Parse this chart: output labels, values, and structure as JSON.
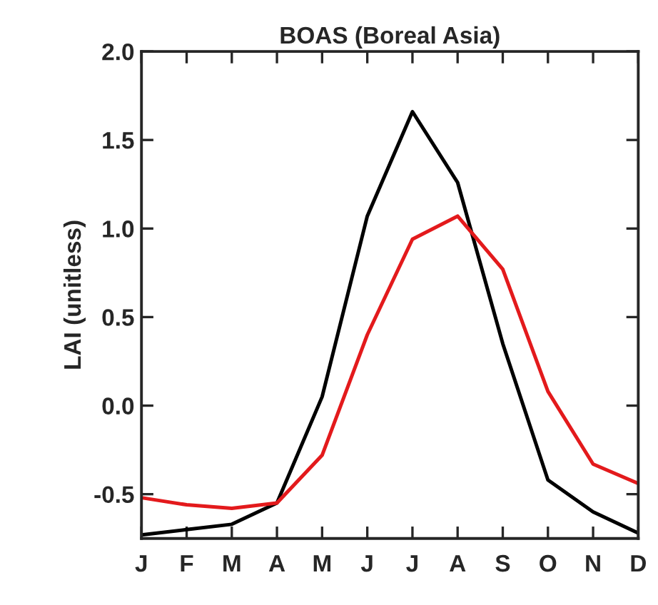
{
  "chart_data": {
    "type": "line",
    "title": "BOAS (Boreal Asia)",
    "ylabel": "LAI (unitless)",
    "categories": [
      "J",
      "F",
      "M",
      "A",
      "M",
      "J",
      "J",
      "A",
      "S",
      "O",
      "N",
      "D"
    ],
    "series": [
      {
        "color": "#000000",
        "values": [
          -0.73,
          -0.7,
          -0.67,
          -0.55,
          0.05,
          1.07,
          1.66,
          1.26,
          0.35,
          -0.42,
          -0.6,
          -0.72
        ]
      },
      {
        "color": "#e31a1c",
        "values": [
          -0.52,
          -0.56,
          -0.58,
          -0.55,
          -0.28,
          0.4,
          0.94,
          1.07,
          0.77,
          0.08,
          -0.33,
          -0.44
        ]
      }
    ],
    "ylim": [
      -0.75,
      2.0
    ],
    "yticks": [
      {
        "value": -0.5,
        "label": "-0.5"
      },
      {
        "value": 0,
        "label": "0.0"
      },
      {
        "value": 0.5,
        "label": "0.5"
      },
      {
        "value": 1.0,
        "label": "1.0"
      },
      {
        "value": 1.5,
        "label": "1.5"
      },
      {
        "value": 2.0,
        "label": "2.0"
      }
    ],
    "grid": false,
    "marker": "none",
    "line_style": "solid"
  }
}
